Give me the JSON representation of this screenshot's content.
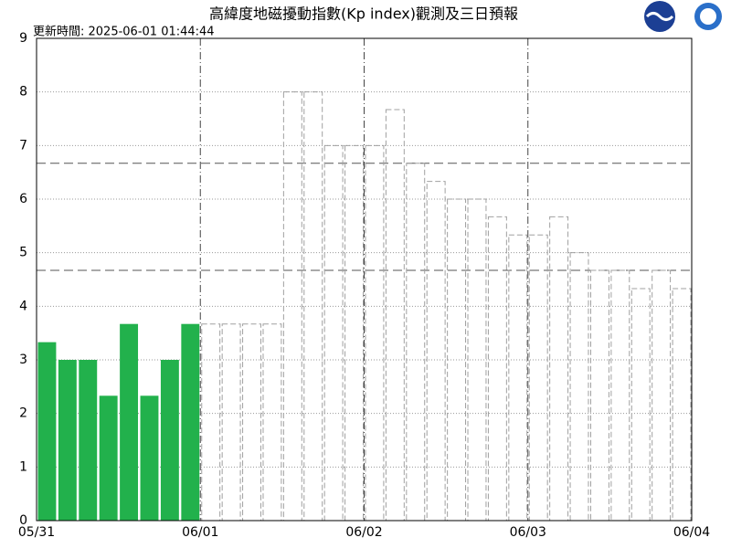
{
  "chart_data": {
    "type": "bar",
    "title": "高緯度地磁擾動指數(Kp index)觀測及三日預報",
    "subtitle": "更新時間: 2025-06-01 01:44:44",
    "x_labels": [
      "05/31",
      "06/01",
      "06/02",
      "06/03",
      "06/04"
    ],
    "series": [
      {
        "color": "#22b14c",
        "values": [
          3.33,
          3,
          3,
          2.33,
          3.67,
          2.33,
          3,
          3.67,
          null,
          null,
          null,
          null,
          null,
          null,
          null,
          null,
          null,
          null,
          null,
          null,
          null,
          null,
          null,
          null,
          null,
          null,
          null,
          null,
          null,
          null,
          null,
          null
        ]
      },
      {
        "color": "#a0a0a0",
        "values": [
          null,
          null,
          null,
          null,
          null,
          null,
          null,
          null,
          3.67,
          3.67,
          3.67,
          3.67,
          8,
          8,
          7,
          7,
          7,
          7.67,
          6.67,
          6.33,
          6,
          6,
          5.67,
          5.33,
          5.33,
          5.67,
          5,
          4.67,
          4.67,
          4.33,
          4.67,
          4.33
        ]
      }
    ],
    "reference_lines": [
      6.67,
      4.67
    ],
    "ylim": [
      0,
      9
    ],
    "yticks": [
      0,
      1,
      2,
      3,
      4,
      5,
      6,
      7,
      8,
      9
    ],
    "grid": true
  }
}
